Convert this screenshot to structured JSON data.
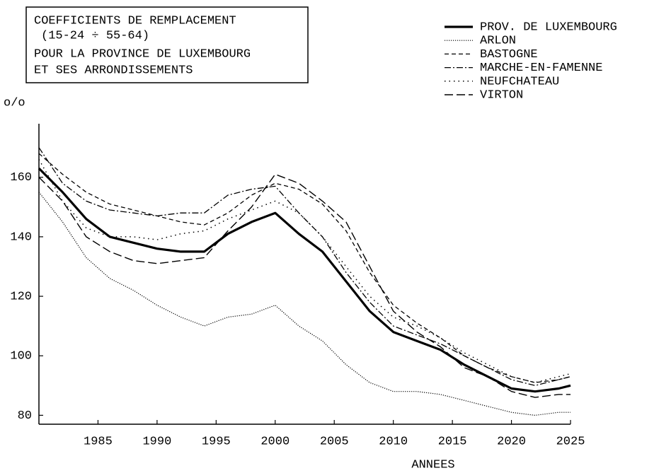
{
  "chart_data": {
    "type": "line",
    "title": [
      "COEFFICIENTS DE REMPLACEMENT",
      "(15-24 ÷ 55-64)",
      "POUR LA PROVINCE DE LUXEMBOURG",
      "ET SES ARRONDISSEMENTS"
    ],
    "y_label": "o/o",
    "x_label": "ANNEES",
    "x": [
      1980,
      1982,
      1984,
      1986,
      1988,
      1990,
      1992,
      1994,
      1996,
      1998,
      2000,
      2002,
      2004,
      2006,
      2008,
      2010,
      2012,
      2014,
      2016,
      2018,
      2020,
      2022,
      2024,
      2025
    ],
    "xlim": [
      1980,
      2025
    ],
    "xticks": [
      1985,
      1990,
      1995,
      2000,
      2005,
      2010,
      2015,
      2020,
      2025
    ],
    "ylim": [
      77,
      178
    ],
    "yticks": [
      80,
      100,
      120,
      140,
      160
    ],
    "grid": false,
    "legend": "top-right",
    "series": [
      {
        "name": "PROV. DE LUXEMBOURG",
        "color": "#000000",
        "line_style": "solid",
        "values": [
          163,
          155,
          146,
          140,
          138,
          136,
          135,
          135,
          141,
          145,
          148,
          141,
          135,
          125,
          115,
          108,
          105,
          102,
          97,
          93,
          89,
          88,
          89,
          90
        ]
      },
      {
        "name": "ARLON",
        "color": "#000000",
        "line_style": "dotted",
        "values": [
          155,
          145,
          133,
          126,
          122,
          117,
          113,
          110,
          113,
          114,
          117,
          110,
          105,
          97,
          91,
          88,
          88,
          87,
          85,
          83,
          81,
          80,
          81,
          81
        ]
      },
      {
        "name": "BASTOGNE",
        "color": "#000000",
        "line_style": "dashed",
        "values": [
          168,
          161,
          155,
          151,
          149,
          147,
          145,
          144,
          148,
          154,
          158,
          156,
          151,
          142,
          128,
          117,
          111,
          106,
          100,
          96,
          93,
          91,
          92,
          93
        ]
      },
      {
        "name": "MARCHE-EN-FAMENNE",
        "color": "#000000",
        "line_style": "dashdot",
        "values": [
          170,
          158,
          152,
          149,
          148,
          147,
          148,
          148,
          154,
          156,
          157,
          148,
          140,
          128,
          118,
          110,
          107,
          104,
          100,
          96,
          92,
          90,
          92,
          93
        ]
      },
      {
        "name": "NEUFCHATEAU",
        "color": "#000000",
        "line_style": "spaced-dotted",
        "values": [
          166,
          152,
          143,
          140,
          140,
          139,
          141,
          142,
          146,
          149,
          152,
          148,
          140,
          130,
          120,
          113,
          110,
          106,
          101,
          97,
          93,
          91,
          93,
          94
        ]
      },
      {
        "name": "VIRTON",
        "color": "#000000",
        "line_style": "longdash",
        "values": [
          160,
          152,
          140,
          135,
          132,
          131,
          132,
          133,
          142,
          150,
          161,
          158,
          152,
          145,
          130,
          115,
          108,
          103,
          96,
          93,
          88,
          86,
          87,
          87
        ]
      }
    ]
  }
}
